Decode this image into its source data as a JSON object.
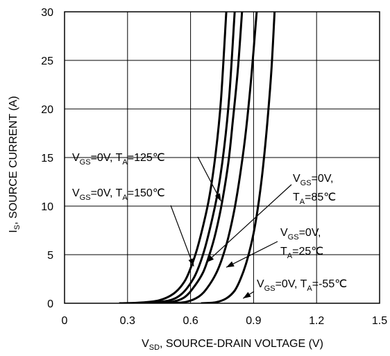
{
  "chart_data": {
    "type": "line",
    "xlabel": {
      "main": "V",
      "sub": "SD",
      "rest": ", SOURCE-DRAIN VOLTAGE (V)"
    },
    "ylabel": {
      "main": "I",
      "sub": "S",
      "rest": ", SOURCE CURRENT (A)"
    },
    "xlim": [
      0,
      1.5
    ],
    "ylim": [
      0,
      30
    ],
    "x_ticks": [
      0,
      0.3,
      0.6,
      0.9,
      1.2,
      1.5
    ],
    "x_tick_labels": [
      "0",
      "0.3",
      "0.6",
      "0.9",
      "1.2",
      "1.5"
    ],
    "y_ticks": [
      0,
      5,
      10,
      15,
      20,
      25,
      30
    ],
    "y_tick_labels": [
      "0",
      "5",
      "10",
      "15",
      "20",
      "25",
      "30"
    ],
    "grid": true,
    "series": [
      {
        "condition": "150C",
        "x": [
          0.26,
          0.35,
          0.45,
          0.52,
          0.57,
          0.6,
          0.63,
          0.66,
          0.69,
          0.72,
          0.745,
          0.77
        ],
        "y": [
          0,
          0.05,
          0.3,
          1.0,
          2.2,
          3.6,
          5.5,
          8.0,
          11.0,
          15.5,
          21.0,
          30
        ]
      },
      {
        "condition": "125C",
        "x": [
          0.3,
          0.4,
          0.5,
          0.56,
          0.61,
          0.64,
          0.67,
          0.7,
          0.73,
          0.76,
          0.785,
          0.81
        ],
        "y": [
          0,
          0.05,
          0.3,
          1.0,
          2.4,
          3.8,
          5.8,
          8.4,
          11.5,
          16.0,
          21.5,
          30
        ]
      },
      {
        "condition": "85C",
        "x": [
          0.4,
          0.5,
          0.57,
          0.62,
          0.66,
          0.69,
          0.72,
          0.75,
          0.78,
          0.8,
          0.825,
          0.845
        ],
        "y": [
          0,
          0.1,
          0.6,
          1.8,
          3.2,
          5.0,
          7.3,
          10.4,
          14.5,
          18.5,
          24.0,
          30
        ]
      },
      {
        "condition": "25C",
        "x": [
          0.5,
          0.58,
          0.64,
          0.68,
          0.72,
          0.75,
          0.78,
          0.81,
          0.84,
          0.865,
          0.89,
          0.915
        ],
        "y": [
          0,
          0.15,
          0.7,
          1.6,
          3.0,
          4.6,
          6.8,
          9.8,
          13.8,
          18.0,
          23.5,
          30
        ]
      },
      {
        "condition": "-55C",
        "x": [
          0.65,
          0.72,
          0.77,
          0.81,
          0.84,
          0.87,
          0.9,
          0.925,
          0.945,
          0.965,
          0.985,
          1.0
        ],
        "y": [
          0,
          0.1,
          0.5,
          1.3,
          2.6,
          4.5,
          7.2,
          10.5,
          14.0,
          18.5,
          24.0,
          30
        ]
      }
    ],
    "annotations": [
      {
        "id": "125C",
        "lines": [
          [
            [
              "V",
              "n"
            ],
            [
              "GS",
              "s"
            ],
            [
              "=0V, T",
              "n"
            ],
            [
              "A",
              "s"
            ],
            [
              "=125℃",
              "n"
            ]
          ]
        ],
        "target": [
          0.745,
          10.5
        ]
      },
      {
        "id": "150C",
        "lines": [
          [
            [
              "V",
              "n"
            ],
            [
              "GS",
              "s"
            ],
            [
              "=0V, T",
              "n"
            ],
            [
              "A",
              "s"
            ],
            [
              "=150℃",
              "n"
            ]
          ]
        ],
        "target": [
          0.615,
          3.8
        ]
      },
      {
        "id": "85C",
        "lines": [
          [
            [
              "V",
              "n"
            ],
            [
              "GS",
              "s"
            ],
            [
              "=0V,",
              "n"
            ]
          ],
          [
            [
              "T",
              "n"
            ],
            [
              "A",
              "s"
            ],
            [
              "=85℃",
              "n"
            ]
          ]
        ],
        "target": [
          0.675,
          4.2
        ]
      },
      {
        "id": "25C",
        "lines": [
          [
            [
              "V",
              "n"
            ],
            [
              "GS",
              "s"
            ],
            [
              "=0V,",
              "n"
            ]
          ],
          [
            [
              "T",
              "n"
            ],
            [
              "A",
              "s"
            ],
            [
              "=25℃",
              "n"
            ]
          ]
        ],
        "target": [
          0.77,
          3.7
        ]
      },
      {
        "id": "-55C",
        "lines": [
          [
            [
              "V",
              "n"
            ],
            [
              "GS",
              "s"
            ],
            [
              "=0V, T",
              "n"
            ],
            [
              "A",
              "s"
            ],
            [
              "=-55℃",
              "n"
            ]
          ]
        ],
        "target": [
          0.85,
          0.5
        ]
      }
    ]
  }
}
